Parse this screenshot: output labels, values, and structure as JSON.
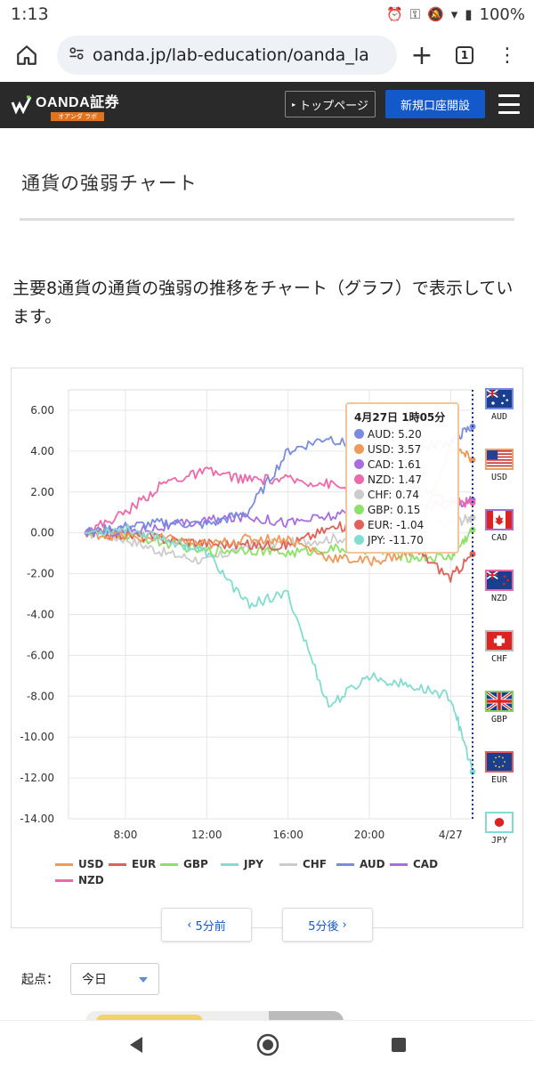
{
  "status_bar": {
    "time": "1:13",
    "battery": "100%"
  },
  "browser": {
    "url": "oanda.jp/lab-education/oanda_la",
    "tab_count": "1"
  },
  "site_header": {
    "logo_name": "OANDA証券",
    "logo_sub": "オアンダ ラボ",
    "top_page_label": "トップページ",
    "open_account_label": "新規口座開設"
  },
  "page": {
    "title": "通貨の強弱チャート",
    "description": "主要8通貨の通貨の強弱の推移をチャート（グラフ）で表示しています。"
  },
  "chart_data": {
    "type": "line",
    "ylim": [
      -14,
      7
    ],
    "yticks": [
      "6.00",
      "4.00",
      "2.00",
      "0.00",
      "-2.00",
      "-4.00",
      "-6.00",
      "-8.00",
      "-10.00",
      "-12.00",
      "-14.00"
    ],
    "xticks": [
      "8:00",
      "12:00",
      "16:00",
      "20:00",
      "4/27"
    ],
    "x_hours": [
      6,
      8,
      10,
      12,
      14,
      16,
      18,
      20,
      22,
      24,
      25.08
    ],
    "grid": true,
    "legend_position": "bottom",
    "series": [
      {
        "name": "USD",
        "color": "#f09a5a",
        "values": [
          0,
          -0.2,
          -0.3,
          -0.6,
          -0.3,
          -0.3,
          -1.2,
          -1.4,
          -1.0,
          4.2,
          3.57
        ]
      },
      {
        "name": "EUR",
        "color": "#e0605a",
        "values": [
          0,
          -0.1,
          -0.3,
          -0.5,
          -0.6,
          -0.6,
          0.2,
          0.5,
          -0.6,
          -2.2,
          -1.04
        ]
      },
      {
        "name": "GBP",
        "color": "#8ee06a",
        "values": [
          0,
          -0.1,
          -0.5,
          -0.9,
          -0.8,
          -1.0,
          -0.8,
          -0.8,
          -1.2,
          -1.2,
          0.15
        ]
      },
      {
        "name": "JPY",
        "color": "#82dcd0",
        "values": [
          0,
          0.2,
          -0.3,
          -1.0,
          -3.5,
          -3.0,
          -8.5,
          -7.0,
          -7.5,
          -8.0,
          -11.7
        ]
      },
      {
        "name": "CHF",
        "color": "#cccccc",
        "values": [
          0,
          -0.3,
          -1.0,
          -1.4,
          -0.6,
          -0.5,
          -0.3,
          -0.2,
          0.2,
          0.5,
          0.74
        ]
      },
      {
        "name": "AUD",
        "color": "#7a8be0",
        "values": [
          0,
          0.3,
          0.5,
          0.4,
          1.0,
          4.0,
          4.7,
          3.8,
          4.0,
          4.5,
          5.2
        ]
      },
      {
        "name": "CAD",
        "color": "#a66ee0",
        "values": [
          0,
          0.1,
          0.3,
          0.6,
          0.8,
          0.5,
          0.8,
          1.0,
          1.3,
          1.4,
          1.61
        ]
      },
      {
        "name": "NZD",
        "color": "#ec6aaa",
        "values": [
          0,
          1.0,
          2.5,
          3.0,
          2.6,
          2.6,
          2.4,
          1.8,
          2.2,
          1.6,
          1.47
        ]
      }
    ],
    "tooltip": {
      "title": "4月27日 1時05分",
      "rows": [
        {
          "label": "AUD: 5.20",
          "color": "#7a8be0"
        },
        {
          "label": "USD: 3.57",
          "color": "#f09a5a"
        },
        {
          "label": "CAD: 1.61",
          "color": "#a66ee0"
        },
        {
          "label": "NZD: 1.47",
          "color": "#ec6aaa"
        },
        {
          "label": "CHF: 0.74",
          "color": "#cccccc"
        },
        {
          "label": "GBP: 0.15",
          "color": "#8ee06a"
        },
        {
          "label": "EUR: -1.04",
          "color": "#e0605a"
        },
        {
          "label": "JPY: -11.70",
          "color": "#82dcd0"
        }
      ]
    }
  },
  "flags": [
    {
      "code": "AUD",
      "color": "#7a8be0",
      "cls": "blue"
    },
    {
      "code": "USD",
      "color": "#f09a5a",
      "cls": "orange"
    },
    {
      "code": "CAD",
      "color": "#a66ee0",
      "cls": "purple"
    },
    {
      "code": "NZD",
      "color": "#ec6aaa",
      "cls": "pink"
    },
    {
      "code": "CHF",
      "color": "#cccccc",
      "cls": "gray"
    },
    {
      "code": "GBP",
      "color": "#8ee06a",
      "cls": "green"
    },
    {
      "code": "EUR",
      "color": "#e0605a",
      "cls": "red"
    },
    {
      "code": "JPY",
      "color": "#82dcd0",
      "cls": "teal"
    }
  ],
  "nav": {
    "prev_label": "5分前",
    "next_label": "5分後"
  },
  "start": {
    "label": "起点：",
    "selected": "今日"
  }
}
